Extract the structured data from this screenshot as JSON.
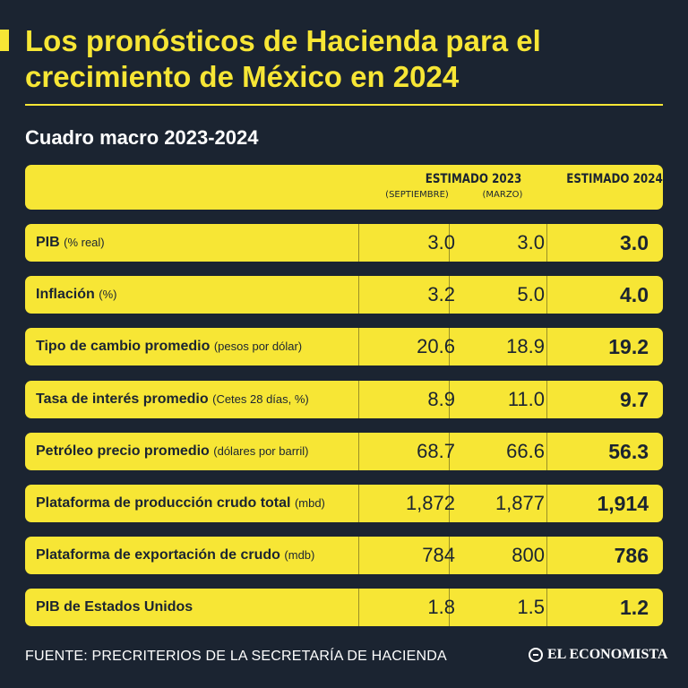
{
  "title": "Los pronósticos de Hacienda para el crecimiento de México en 2024",
  "subtitle": "Cuadro macro 2023-2024",
  "header": {
    "estimado_2023": "ESTIMADO 2023",
    "septiembre": "(SEPTIEMBRE)",
    "marzo": "(MARZO)",
    "estimado_2024": "ESTIMADO 2024"
  },
  "chart_data": {
    "type": "table",
    "title": "Cuadro macro 2023-2024",
    "columns": [
      "Estimado 2023 (Septiembre)",
      "Estimado 2023 (Marzo)",
      "Estimado 2024"
    ],
    "rows": [
      {
        "label": "PIB",
        "unit": "(% real)",
        "sep": "3.0",
        "mar": "3.0",
        "est24": "3.0"
      },
      {
        "label": "Inflación",
        "unit": "(%)",
        "sep": "3.2",
        "mar": "5.0",
        "est24": "4.0"
      },
      {
        "label": "Tipo de cambio promedio",
        "unit": "(pesos por dólar)",
        "sep": "20.6",
        "mar": "18.9",
        "est24": "19.2"
      },
      {
        "label": "Tasa de interés promedio",
        "unit": "(Cetes 28 días, %)",
        "sep": "8.9",
        "mar": "11.0",
        "est24": "9.7"
      },
      {
        "label": "Petróleo precio promedio",
        "unit": "(dólares por barril)",
        "sep": "68.7",
        "mar": "66.6",
        "est24": "56.3"
      },
      {
        "label": "Plataforma de producción crudo total",
        "unit": "(mbd)",
        "sep": "1,872",
        "mar": "1,877",
        "est24": "1,914"
      },
      {
        "label": "Plataforma de exportación de crudo",
        "unit": "(mdb)",
        "sep": "784",
        "mar": "800",
        "est24": "786"
      },
      {
        "label": "PIB de Estados Unidos",
        "unit": "",
        "sep": "1.8",
        "mar": "1.5",
        "est24": "1.2"
      }
    ]
  },
  "footer": {
    "source": "FUENTE: PRECRITERIOS DE LA SECRETARÍA DE HACIENDA",
    "brand": "EL ECONOMISTA"
  },
  "colors": {
    "background": "#1b2431",
    "accent": "#f7e635",
    "text_dark": "#1b2431"
  }
}
